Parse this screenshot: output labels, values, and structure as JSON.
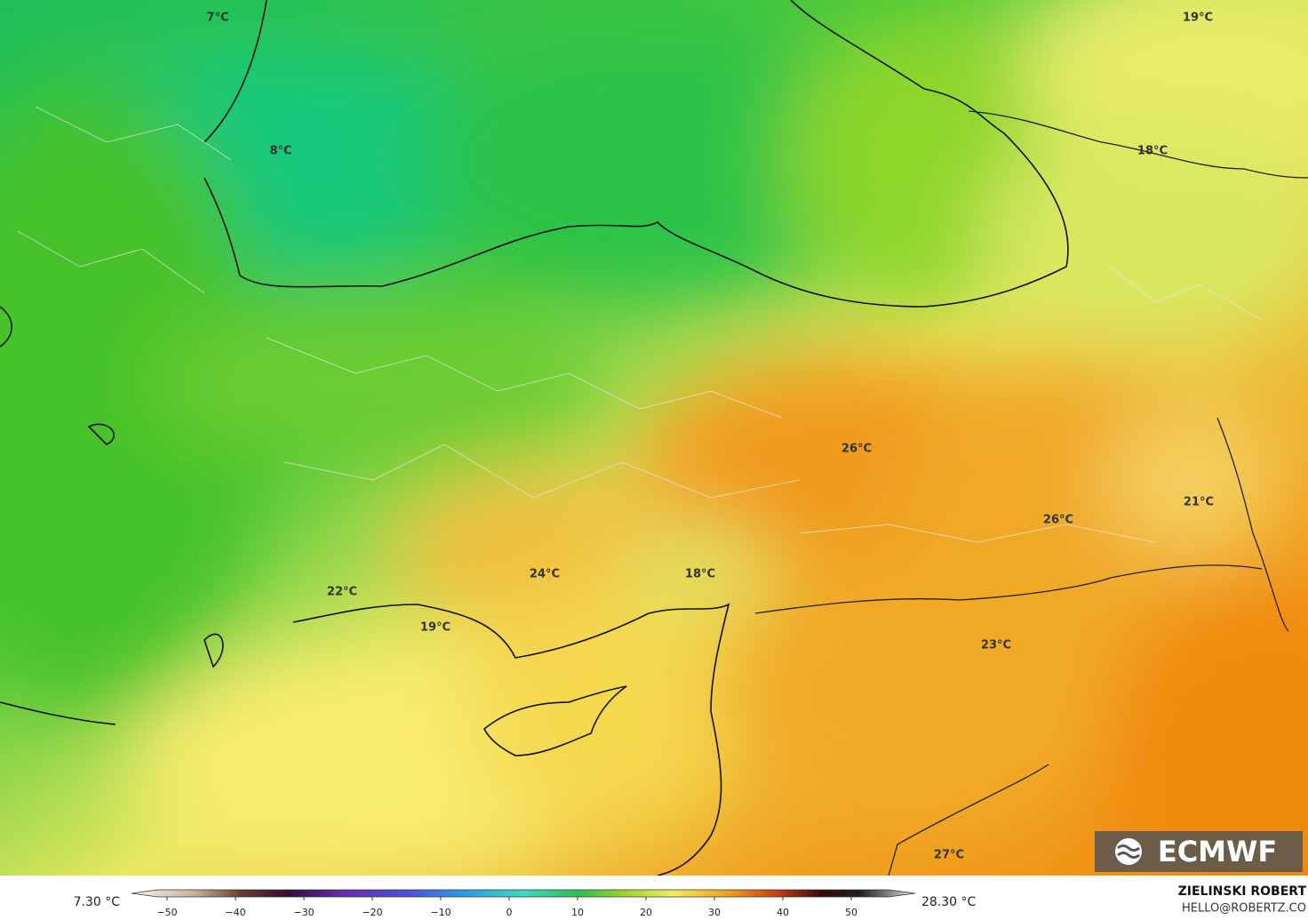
{
  "map": {
    "labels": [
      "7°C",
      "19°C",
      "8°C",
      "18°C",
      "26°C",
      "26°C",
      "21°C",
      "22°C",
      "24°C",
      "18°C",
      "19°C",
      "23°C",
      "27°C"
    ],
    "logo": "ECMWF",
    "author": "ZIELINSKI ROBERT",
    "contact": "HELLO@ROBERTZ.CO"
  },
  "colorbar": {
    "min_label": "7.30 °C",
    "max_label": "28.30 °C",
    "ticks": [
      {
        "value": -50,
        "label": "−50"
      },
      {
        "value": -40,
        "label": "−40"
      },
      {
        "value": -30,
        "label": "−30"
      },
      {
        "value": -20,
        "label": "−20"
      },
      {
        "value": -10,
        "label": "−10"
      },
      0,
      10,
      20,
      30,
      40,
      50
    ]
  }
}
